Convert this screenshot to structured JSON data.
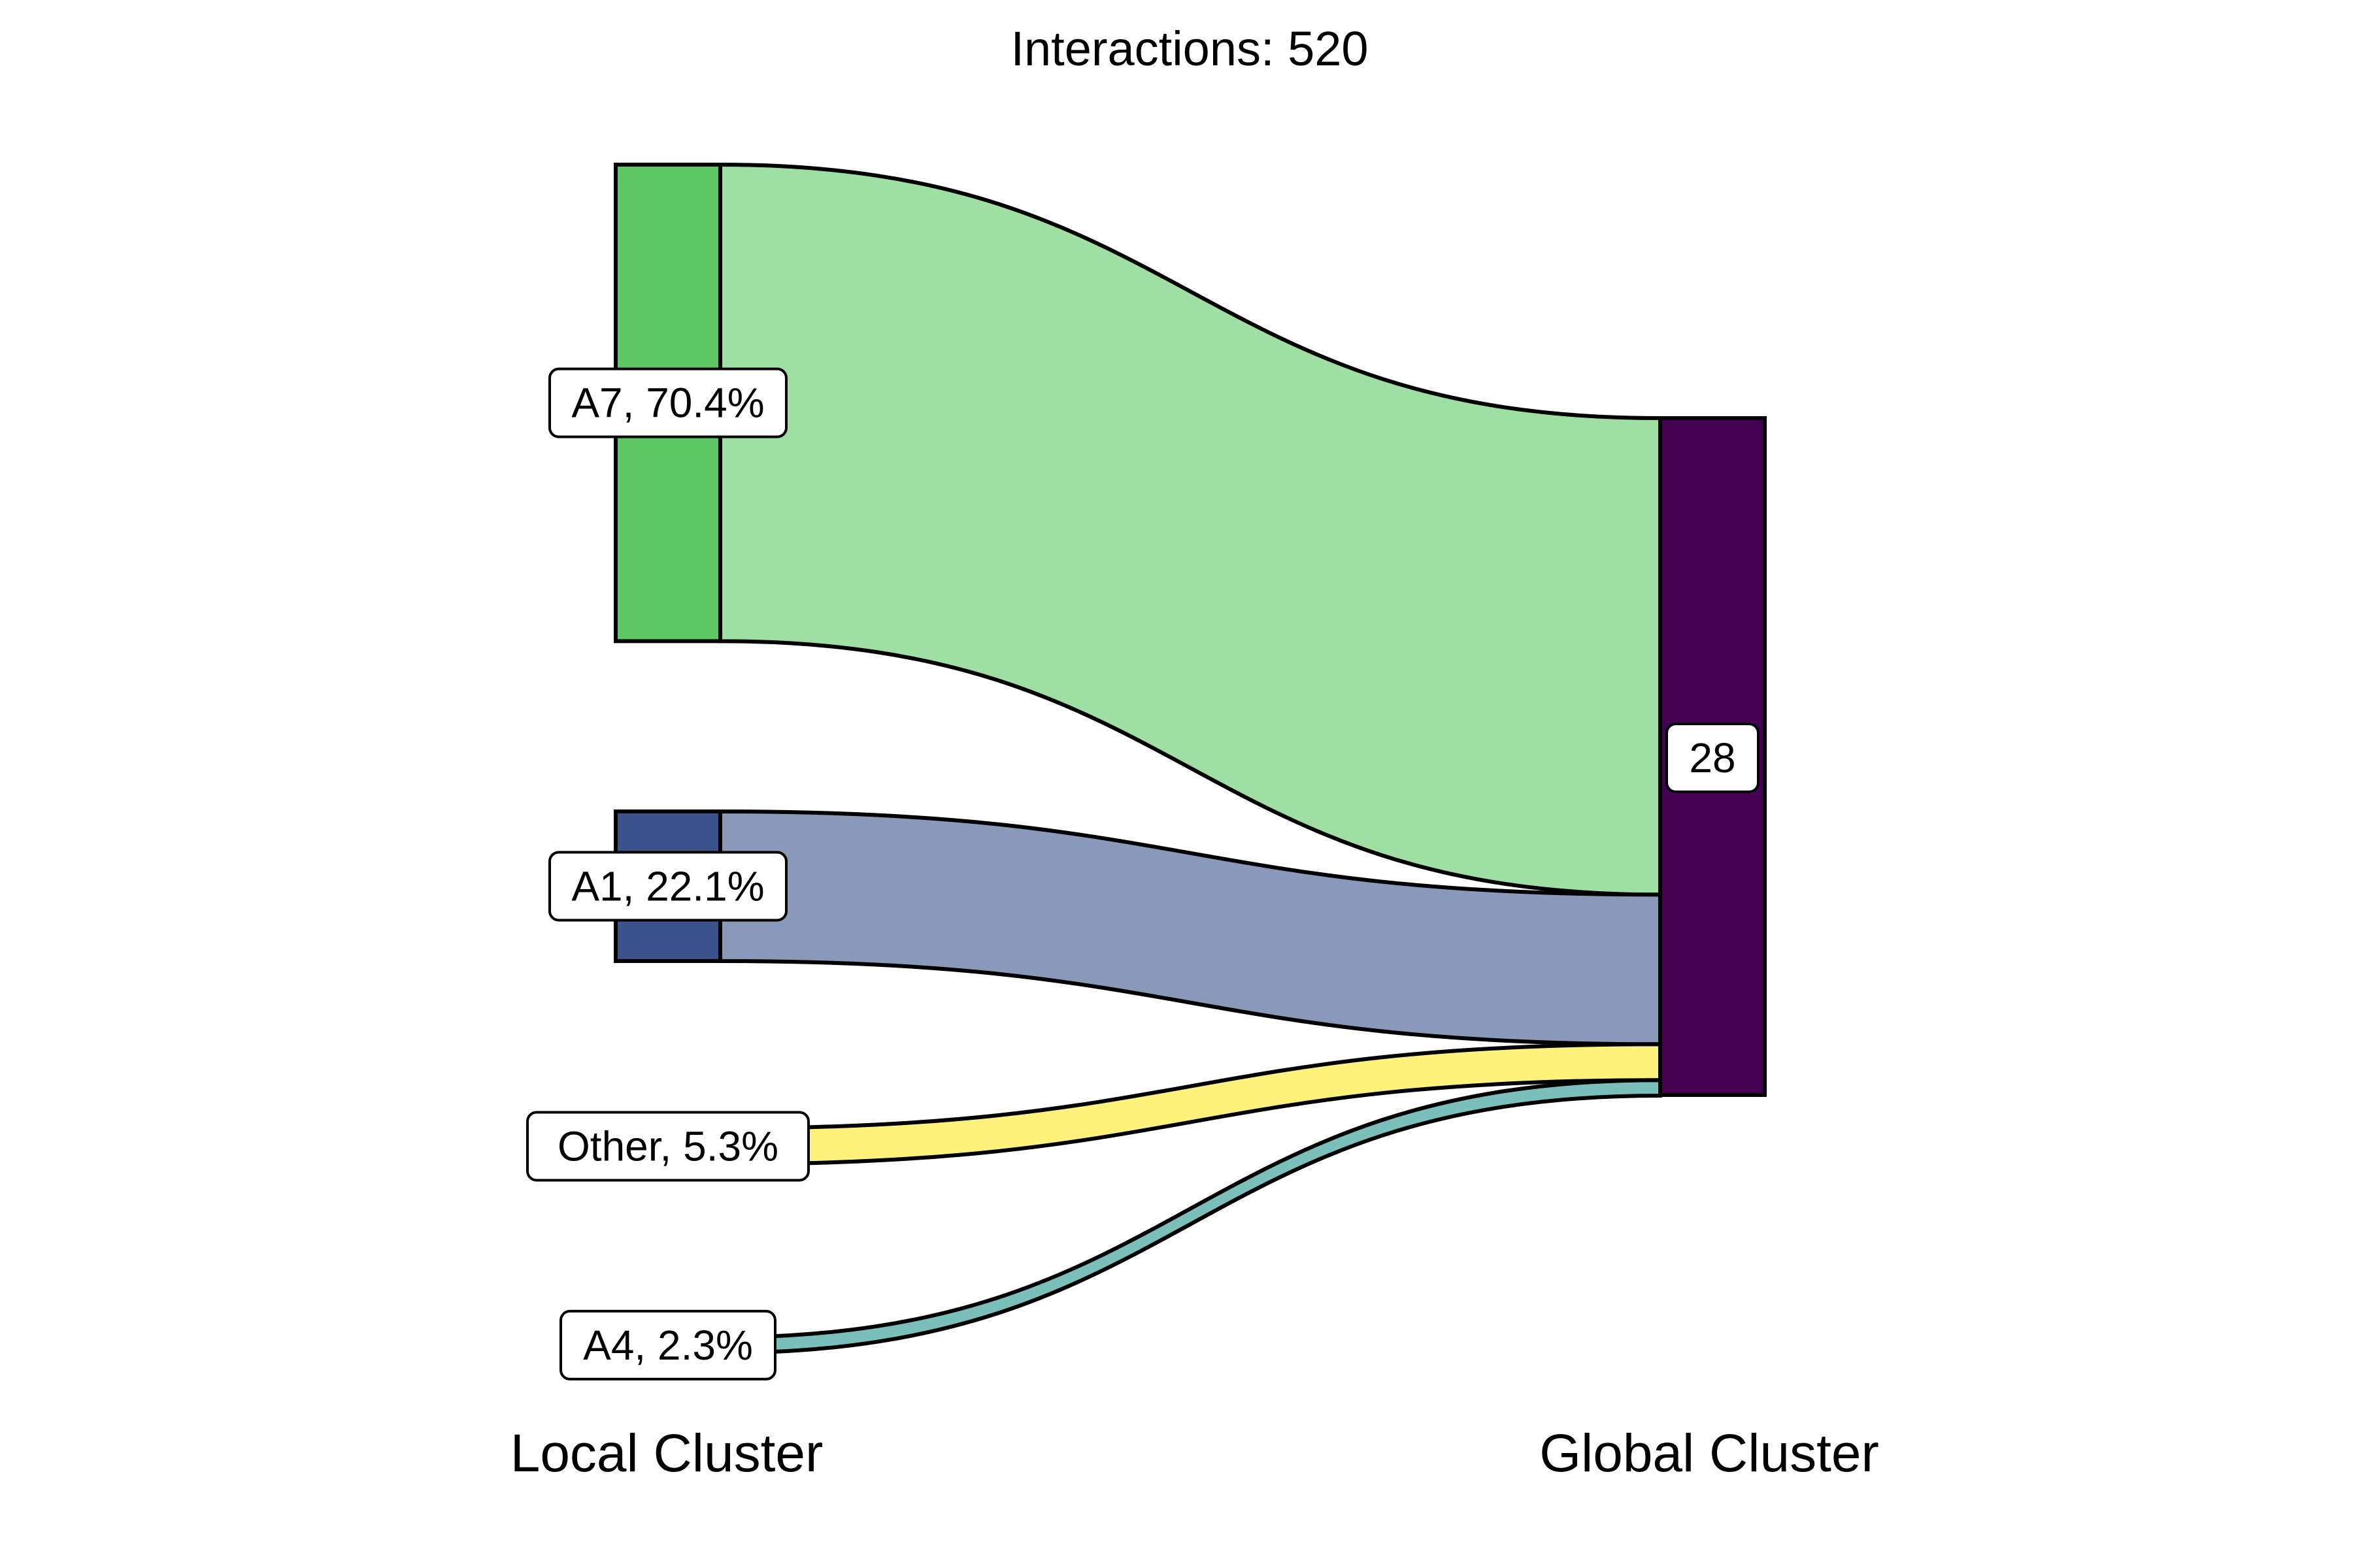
{
  "chart_data": {
    "type": "sankey",
    "title": "Interactions: 520",
    "axes": [
      "Local Cluster",
      "Global Cluster"
    ],
    "sources": [
      {
        "name": "A7",
        "label": "A7, 70.4%",
        "percent": 70.4,
        "node_color": "#5ec962",
        "flow_color": "#a0dfa3"
      },
      {
        "name": "A1",
        "label": "A1, 22.1%",
        "percent": 22.1,
        "node_color": "#3b528b",
        "flow_color": "#8a98b9"
      },
      {
        "name": "Other",
        "label": "Other, 5.3%",
        "percent": 5.3,
        "node_color": "#fde725",
        "flow_color": "#fef17c"
      },
      {
        "name": "A4",
        "label": "A4, 2.3%",
        "percent": 2.3,
        "node_color": "#21918c",
        "flow_color": "#7bbfbb"
      }
    ],
    "target": {
      "name": "28",
      "label": "28",
      "percent": 100.0,
      "color": "#440154"
    }
  }
}
